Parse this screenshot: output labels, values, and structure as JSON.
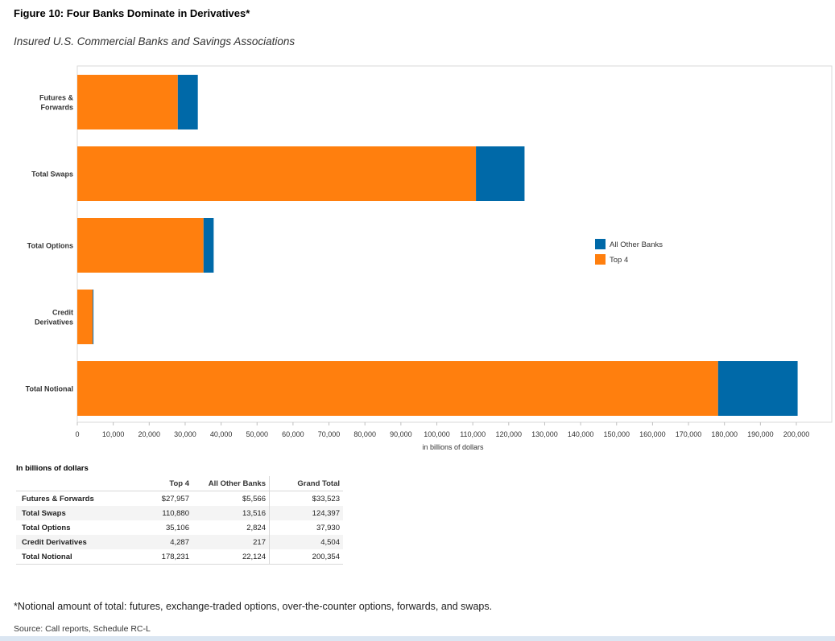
{
  "title": "Figure 10: Four Banks Dominate in Derivatives*",
  "subtitle": "Insured U.S. Commercial Banks and Savings Associations",
  "chart_data": {
    "type": "bar",
    "orientation": "horizontal",
    "stacked": true,
    "categories": [
      "Futures & Forwards",
      "Total Swaps",
      "Total Options",
      "Credit Derivatives",
      "Total Notional"
    ],
    "category_lines": [
      [
        "Futures &",
        "Forwards"
      ],
      [
        "Total Swaps"
      ],
      [
        "Total Options"
      ],
      [
        "Credit",
        "Derivatives"
      ],
      [
        "Total Notional"
      ]
    ],
    "series": [
      {
        "name": "Top 4",
        "color": "#ff7f0e",
        "values": [
          27957,
          110880,
          35106,
          4287,
          178231
        ]
      },
      {
        "name": "All Other Banks",
        "color": "#0069a8",
        "values": [
          5566,
          13516,
          2824,
          217,
          22124
        ]
      }
    ],
    "xlabel": "in billions of dollars",
    "xlim": [
      0,
      200000
    ],
    "xticks": [
      0,
      10000,
      20000,
      30000,
      40000,
      50000,
      60000,
      70000,
      80000,
      90000,
      100000,
      110000,
      120000,
      130000,
      140000,
      150000,
      160000,
      170000,
      180000,
      190000,
      200000
    ],
    "xtick_labels": [
      "0",
      "10,000",
      "20,000",
      "30,000",
      "40,000",
      "50,000",
      "60,000",
      "70,000",
      "80,000",
      "90,000",
      "100,000",
      "110,000",
      "120,000",
      "130,000",
      "140,000",
      "150,000",
      "160,000",
      "170,000",
      "180,000",
      "190,000",
      "200,000"
    ],
    "legend": {
      "placement": "right",
      "entries": [
        {
          "label": "All Other Banks",
          "color": "#0069a8"
        },
        {
          "label": "Top 4",
          "color": "#ff7f0e"
        }
      ]
    },
    "grid": false
  },
  "table": {
    "caption": "In billions of dollars",
    "headers": [
      "Top 4",
      "All Other Banks",
      "Grand Total"
    ],
    "rows": [
      {
        "label": "Futures & Forwards",
        "cells": [
          "$27,957",
          "$5,566",
          "$33,523"
        ]
      },
      {
        "label": "Total Swaps",
        "cells": [
          "110,880",
          "13,516",
          "124,397"
        ]
      },
      {
        "label": "Total Options",
        "cells": [
          "35,106",
          "2,824",
          "37,930"
        ]
      },
      {
        "label": "Credit Derivatives",
        "cells": [
          "4,287",
          "217",
          "4,504"
        ]
      },
      {
        "label": "Total Notional",
        "cells": [
          "178,231",
          "22,124",
          "200,354"
        ]
      }
    ]
  },
  "footnote": "*Notional amount of total: futures, exchange-traded options, over-the-counter options, forwards, and swaps.",
  "source": "Source: Call reports, Schedule RC-L"
}
